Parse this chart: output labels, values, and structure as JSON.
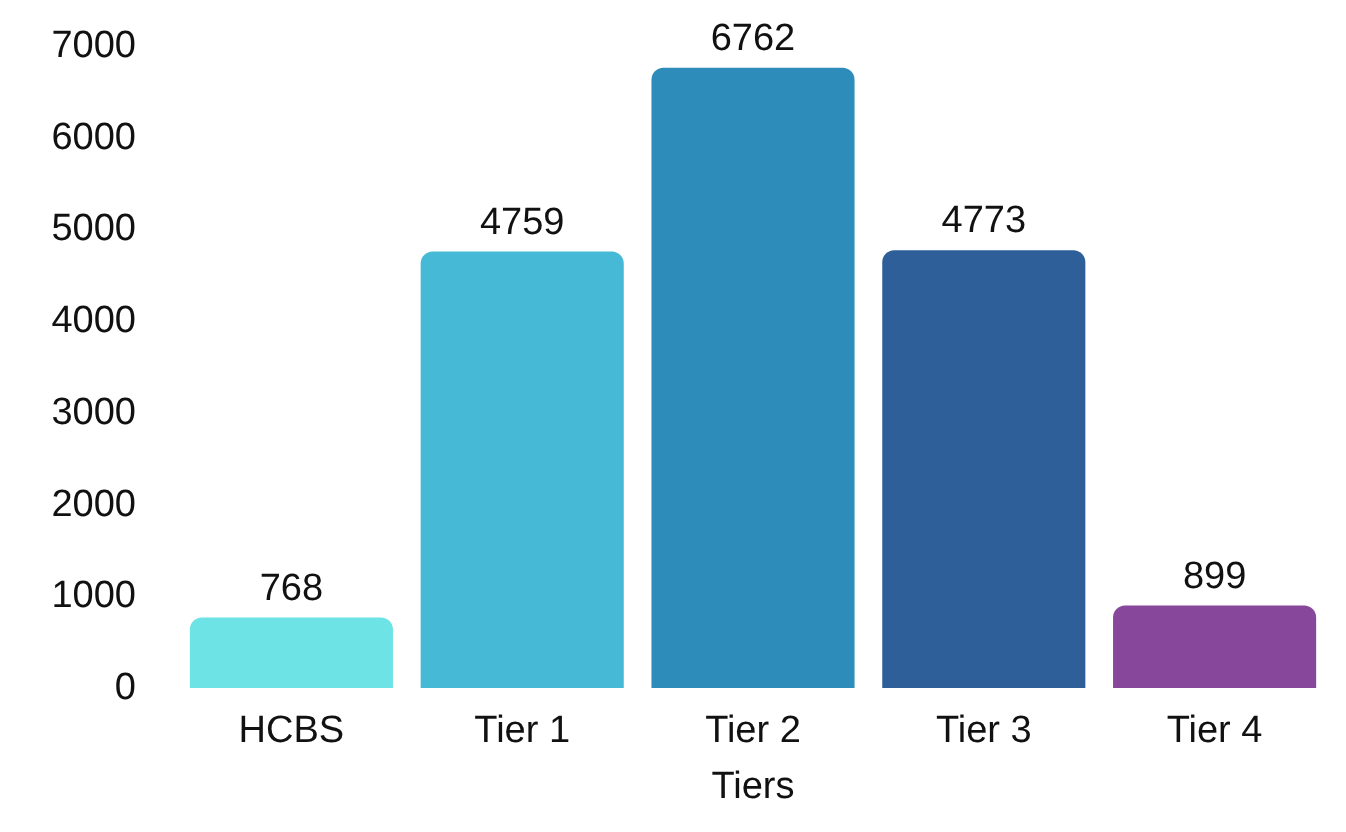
{
  "chart_data": {
    "type": "bar",
    "xlabel": "Tiers",
    "categories": [
      "HCBS",
      "Tier 1",
      "Tier 2",
      "Tier 3",
      "Tier 4"
    ],
    "values": [
      768,
      4759,
      6762,
      4773,
      899
    ],
    "colors": [
      "#6de3e6",
      "#45b9d6",
      "#2e8cba",
      "#2e5f98",
      "#87479b"
    ],
    "ylim": [
      0,
      7000
    ],
    "yticks": [
      0,
      1000,
      2000,
      3000,
      4000,
      5000,
      6000,
      7000
    ],
    "data_labels": true,
    "grid": false
  }
}
